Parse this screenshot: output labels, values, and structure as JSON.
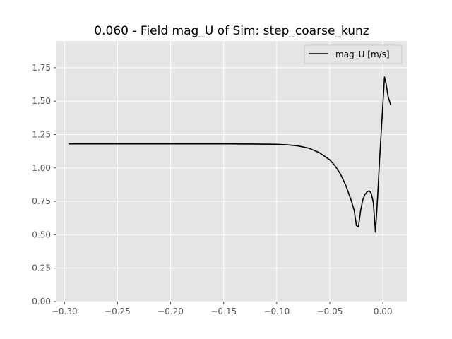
{
  "chart_data": {
    "type": "line",
    "title": "0.060 - Field mag_U of Sim: step_coarse_kunz",
    "xlabel": "",
    "ylabel": "",
    "xlim": [
      -0.3075,
      0.0225
    ],
    "ylim": [
      0.0,
      1.95
    ],
    "xticks": [
      -0.3,
      -0.25,
      -0.2,
      -0.15,
      -0.1,
      -0.05,
      0.0
    ],
    "xtick_labels": [
      "−0.30",
      "−0.25",
      "−0.20",
      "−0.15",
      "−0.10",
      "−0.05",
      "0.00"
    ],
    "yticks": [
      0.0,
      0.25,
      0.5,
      0.75,
      1.0,
      1.25,
      1.5,
      1.75
    ],
    "ytick_labels": [
      "0.00",
      "0.25",
      "0.50",
      "0.75",
      "1.00",
      "1.25",
      "1.50",
      "1.75"
    ],
    "grid": true,
    "legend_position": "top-right",
    "series": [
      {
        "name": "mag_U [m/s]",
        "color": "#000000",
        "x": [
          -0.296,
          -0.25,
          -0.2,
          -0.15,
          -0.12,
          -0.1,
          -0.09,
          -0.08,
          -0.07,
          -0.06,
          -0.05,
          -0.045,
          -0.04,
          -0.035,
          -0.03,
          -0.027,
          -0.025,
          -0.023,
          -0.021,
          -0.019,
          -0.017,
          -0.015,
          -0.013,
          -0.011,
          -0.009,
          -0.007,
          -0.005,
          -0.003,
          -0.0015,
          0.0,
          0.0015,
          0.003,
          0.005,
          0.0075
        ],
        "y": [
          1.18,
          1.18,
          1.18,
          1.18,
          1.179,
          1.177,
          1.173,
          1.165,
          1.148,
          1.115,
          1.06,
          1.015,
          0.955,
          0.87,
          0.76,
          0.68,
          0.57,
          0.56,
          0.68,
          0.76,
          0.8,
          0.82,
          0.83,
          0.81,
          0.74,
          0.52,
          0.78,
          1.08,
          1.28,
          1.48,
          1.68,
          1.63,
          1.53,
          1.47
        ]
      }
    ]
  }
}
